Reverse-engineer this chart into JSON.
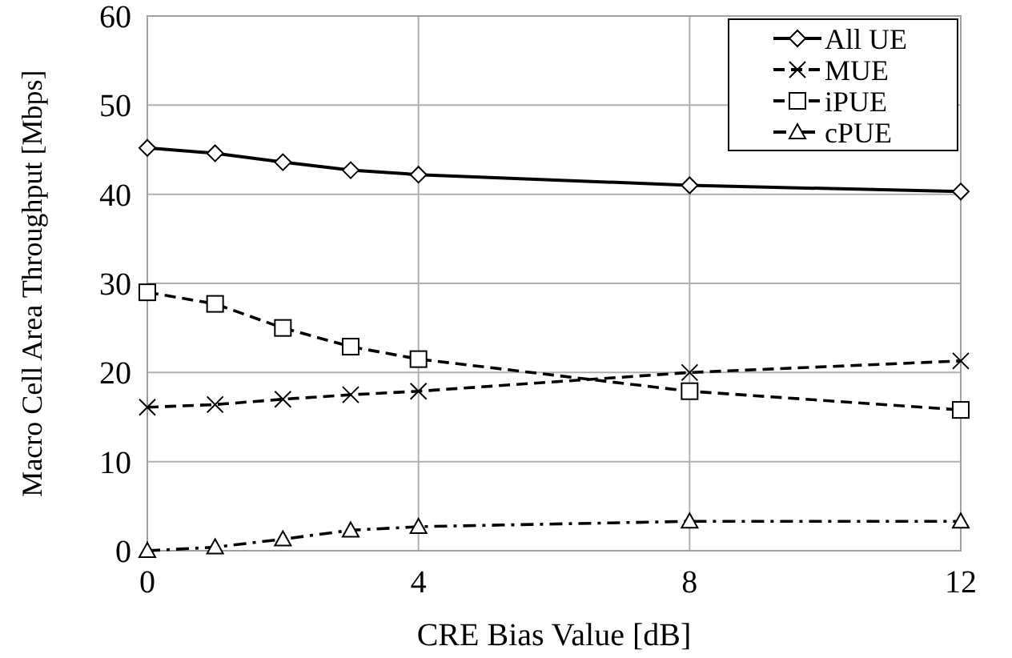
{
  "chart_data": {
    "type": "line",
    "xlabel": "CRE Bias Value [dB]",
    "ylabel": "Macro Cell Area Throughput [Mbps]",
    "x": [
      0,
      1,
      2,
      3,
      4,
      8,
      12
    ],
    "xlim": [
      0,
      12
    ],
    "xticks": [
      0,
      4,
      8,
      12
    ],
    "ylim": [
      0,
      60
    ],
    "yticks": [
      0,
      10,
      20,
      30,
      40,
      50,
      60
    ],
    "grid": true,
    "legend": "top right",
    "series": [
      {
        "name": "All UE",
        "color": "#000000",
        "marker": "diamond",
        "line_style": "solid",
        "values": [
          45.2,
          44.6,
          43.6,
          42.7,
          42.2,
          41.0,
          40.3
        ]
      },
      {
        "name": "MUE",
        "color": "#000000",
        "marker": "cross",
        "line_style": "dashed",
        "values": [
          16.1,
          16.4,
          17.0,
          17.5,
          17.9,
          20.0,
          21.3
        ]
      },
      {
        "name": "iPUE",
        "color": "#000000",
        "marker": "square",
        "line_style": "dashed",
        "values": [
          29.0,
          27.7,
          25.0,
          22.9,
          21.5,
          17.9,
          15.8
        ]
      },
      {
        "name": "cPUE",
        "color": "#000000",
        "marker": "triangle",
        "line_style": "dotted",
        "values": [
          0,
          0.4,
          1.3,
          2.3,
          2.7,
          3.3,
          3.3
        ]
      }
    ]
  }
}
